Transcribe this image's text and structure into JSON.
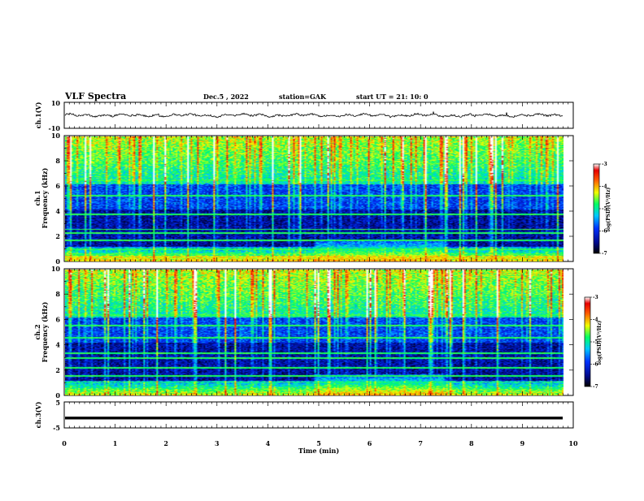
{
  "header": {
    "title": "VLF Spectra",
    "date": "Dec.5 , 2022",
    "station": "station=GAK",
    "start_ut": "start UT = 21: 10: 0"
  },
  "chart_data": [
    {
      "id": "ch1-waveform",
      "type": "line",
      "ylabel": "ch.1(V)",
      "ylim": [
        -10,
        10
      ],
      "ytick_labels": [
        "10",
        "-10"
      ],
      "xlim": [
        0,
        10
      ],
      "grid": false
    },
    {
      "id": "ch1-spectrogram",
      "type": "heatmap",
      "ylabel": "ch.1\nFrequency (kHz)",
      "ylabel_lines": [
        "ch.1",
        "Frequency (kHz)"
      ],
      "ylim": [
        0,
        10
      ],
      "yticks": [
        "0",
        "2",
        "4",
        "6",
        "8",
        "10"
      ],
      "xlim": [
        0,
        10
      ],
      "colorbar": {
        "label": "log(PSD)(V²/Hz)",
        "range": [
          -7,
          -3
        ],
        "ticks": [
          "-3",
          "-4",
          "-5",
          "-6",
          "-7"
        ]
      }
    },
    {
      "id": "ch2-spectrogram",
      "type": "heatmap",
      "ylabel": "ch.2\nFrequency (kHz)",
      "ylabel_lines": [
        "ch.2",
        "Frequency (kHz)"
      ],
      "ylim": [
        0,
        10
      ],
      "yticks": [
        "0",
        "2",
        "4",
        "6",
        "8",
        "10"
      ],
      "xlim": [
        0,
        10
      ],
      "colorbar": {
        "label": "log(PSD)(V²/Hz)",
        "range": [
          -7,
          -3
        ],
        "ticks": [
          "-3",
          "-4",
          "-5",
          "-6",
          "-7"
        ]
      }
    },
    {
      "id": "ch3-waveform",
      "type": "line",
      "ylabel": "ch.3(V)",
      "ylim": [
        -5,
        5
      ],
      "ytick_labels": [
        "5",
        "-5"
      ],
      "level": -1.2,
      "xlim": [
        0,
        10
      ],
      "xticks": [
        "0",
        "1",
        "2",
        "3",
        "4",
        "5",
        "6",
        "7",
        "8",
        "9",
        "10"
      ],
      "xlabel": "Time (min)"
    }
  ]
}
